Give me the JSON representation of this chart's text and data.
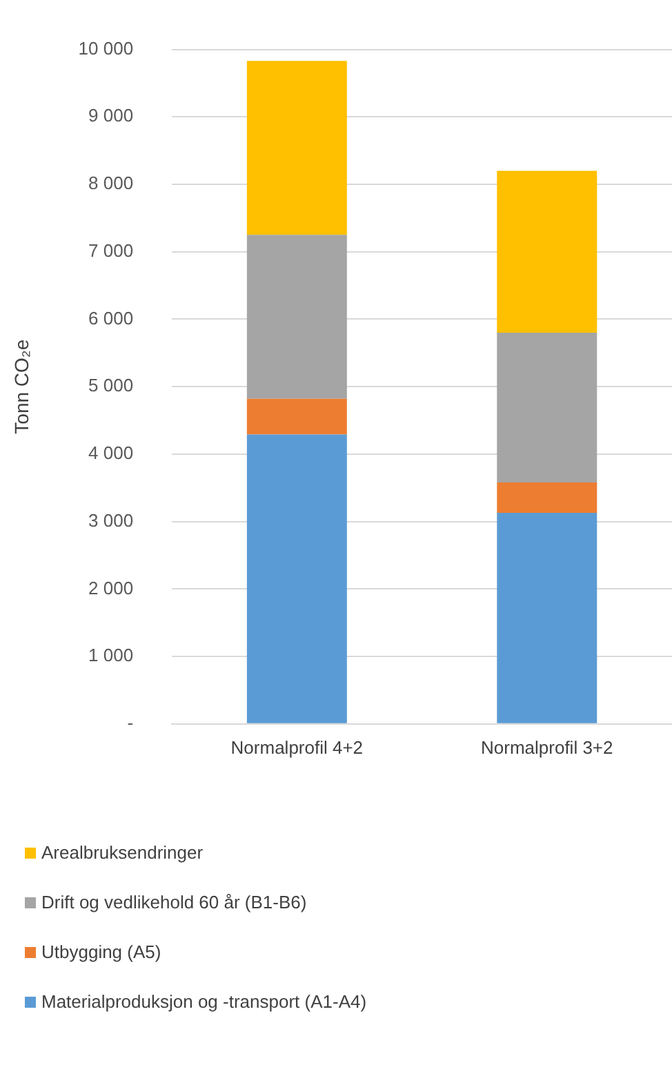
{
  "chart_data": {
    "type": "bar",
    "stacked": true,
    "ylabel": "Tonn CO₂e",
    "categories": [
      "Normalprofil 4+2",
      "Normalprofil 3+2"
    ],
    "series": [
      {
        "name": "Materialproduksjon og -transport (A1-A4)",
        "color": "#5b9bd5",
        "values": [
          4290,
          3130
        ]
      },
      {
        "name": "Utbygging (A5)",
        "color": "#ed7d31",
        "values": [
          530,
          450
        ]
      },
      {
        "name": "Drift og vedlikehold 60 år (B1-B6)",
        "color": "#a5a5a5",
        "values": [
          2430,
          2220
        ]
      },
      {
        "name": "Arealbruksendringer",
        "color": "#ffc000",
        "values": [
          2580,
          2400
        ]
      }
    ],
    "ylim": [
      0,
      10000
    ],
    "yticks": [
      {
        "value": 0,
        "label": "-"
      },
      {
        "value": 1000,
        "label": "1 000"
      },
      {
        "value": 2000,
        "label": "2 000"
      },
      {
        "value": 3000,
        "label": "3 000"
      },
      {
        "value": 4000,
        "label": "4 000"
      },
      {
        "value": 5000,
        "label": "5 000"
      },
      {
        "value": 6000,
        "label": "6 000"
      },
      {
        "value": 7000,
        "label": "7 000"
      },
      {
        "value": 8000,
        "label": "8 000"
      },
      {
        "value": 9000,
        "label": "9 000"
      },
      {
        "value": 10000,
        "label": "10 000"
      }
    ],
    "grid": "y",
    "legend": "bottom"
  }
}
